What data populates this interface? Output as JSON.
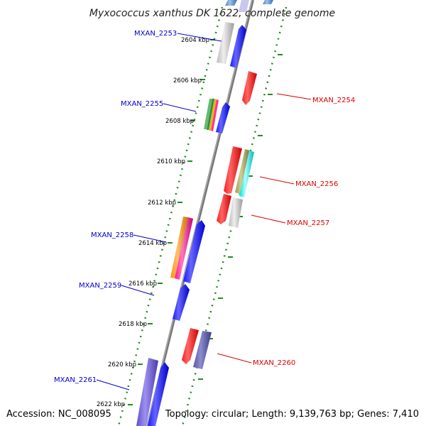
{
  "title": "Myxococcus xanthus DK 1622, complete genome",
  "footer": {
    "accession": "Accession: NC_008095",
    "info": "Topology: circular; Length: 9,139,763 bp; Genes: 7,410"
  },
  "ticks": [
    "2604 kbp",
    "2606 kbp",
    "2608 kbp",
    "2610 kbp",
    "2612 kbp",
    "2614 kbp",
    "2616 kbp",
    "2618 kbp",
    "2620 kbp",
    "2622 kbp"
  ],
  "genes": [
    {
      "id": "MXAN_2253",
      "strand": "forward",
      "color": "#0000ff"
    },
    {
      "id": "MXAN_2254",
      "strand": "reverse",
      "color": "#ff0000"
    },
    {
      "id": "MXAN_2255",
      "strand": "forward",
      "color": "#0000ff"
    },
    {
      "id": "MXAN_2256",
      "strand": "reverse",
      "color": "#ff0000"
    },
    {
      "id": "MXAN_2257",
      "strand": "reverse",
      "color": "#ff0000"
    },
    {
      "id": "MXAN_2258",
      "strand": "forward",
      "color": "#0000ff"
    },
    {
      "id": "MXAN_2259",
      "strand": "forward",
      "color": "#0000ff"
    },
    {
      "id": "MXAN_2260",
      "strand": "reverse",
      "color": "#ff0000"
    },
    {
      "id": "MXAN_2261",
      "strand": "forward",
      "color": "#0000ff"
    }
  ],
  "colors": {
    "forward_label": "#0000cc",
    "reverse_label": "#dd0000",
    "backbone": "#777777",
    "dotted_track": "#228b22"
  }
}
